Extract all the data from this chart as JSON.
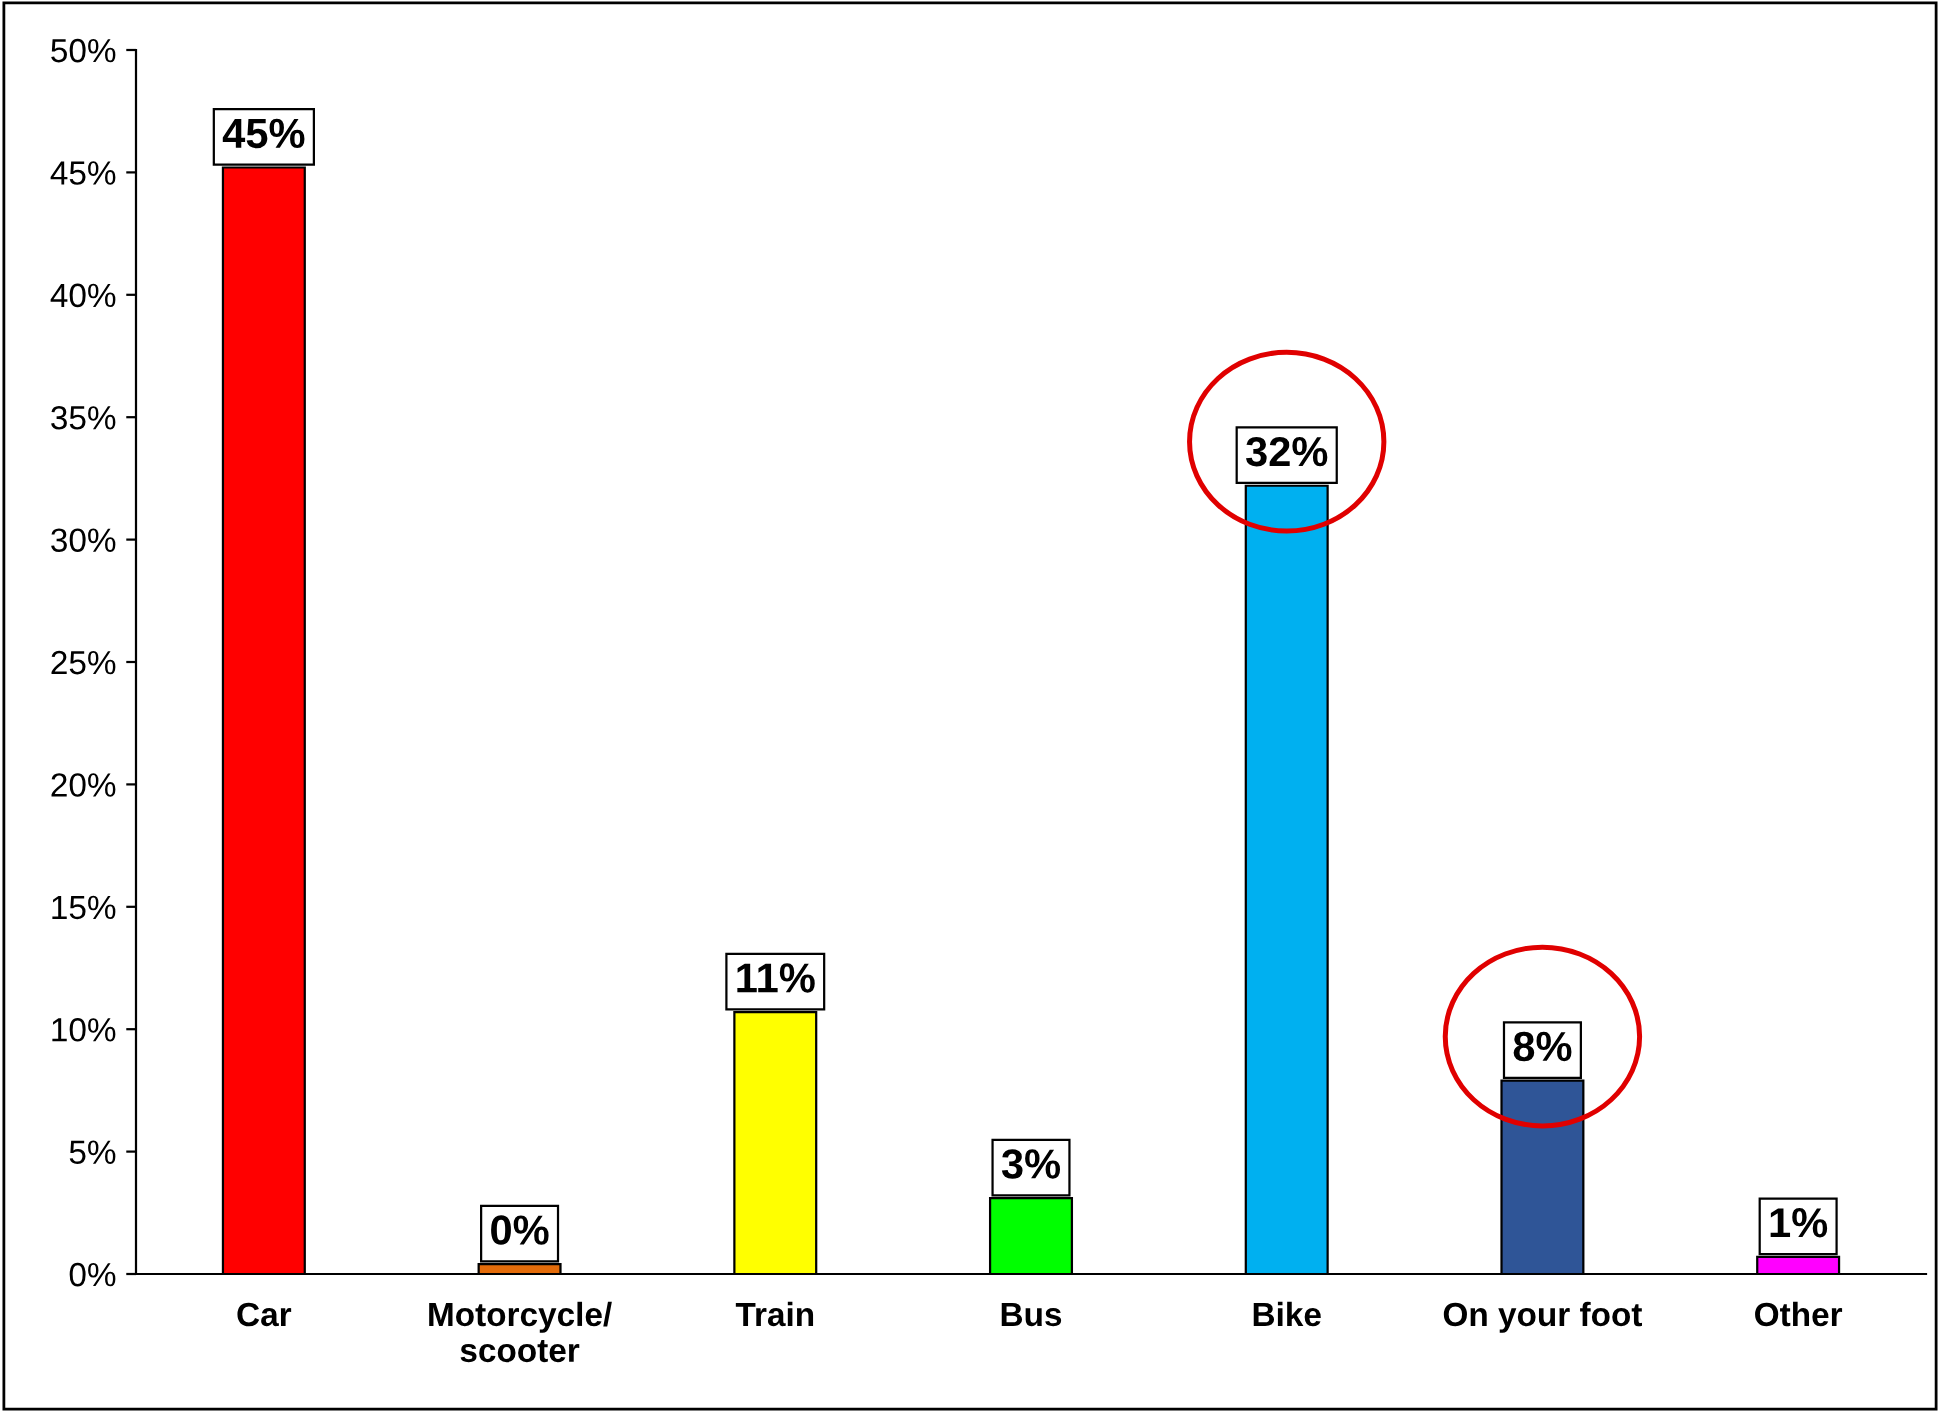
{
  "chart_data": {
    "type": "bar",
    "categories": [
      "Car",
      "Motorcycle/\nscooter",
      "Train",
      "Bus",
      "Bike",
      "On your foot",
      "Other"
    ],
    "values": [
      45.2,
      0.4,
      10.7,
      3.1,
      32.2,
      7.9,
      0.7
    ],
    "colors": [
      "#ff0000",
      "#e46c0a",
      "#ffff00",
      "#00ff00",
      "#00b0f0",
      "#2f5597",
      "#ff00ff"
    ],
    "value_labels": [
      "45%",
      "0%",
      "11%",
      "3%",
      "32%",
      "8%",
      "1%"
    ],
    "ylim": [
      0,
      50
    ],
    "yticks": [
      {
        "value": 0,
        "label": "0%"
      },
      {
        "value": 5,
        "label": "5%"
      },
      {
        "value": 10,
        "label": "10%"
      },
      {
        "value": 15,
        "label": "15%"
      },
      {
        "value": 20,
        "label": "20%"
      },
      {
        "value": 25,
        "label": "25%"
      },
      {
        "value": 30,
        "label": "30%"
      },
      {
        "value": 35,
        "label": "35%"
      },
      {
        "value": 40,
        "label": "40%"
      },
      {
        "value": 45,
        "label": "45%"
      },
      {
        "value": 50,
        "label": "50%"
      }
    ],
    "grid": false,
    "legend": false
  }
}
